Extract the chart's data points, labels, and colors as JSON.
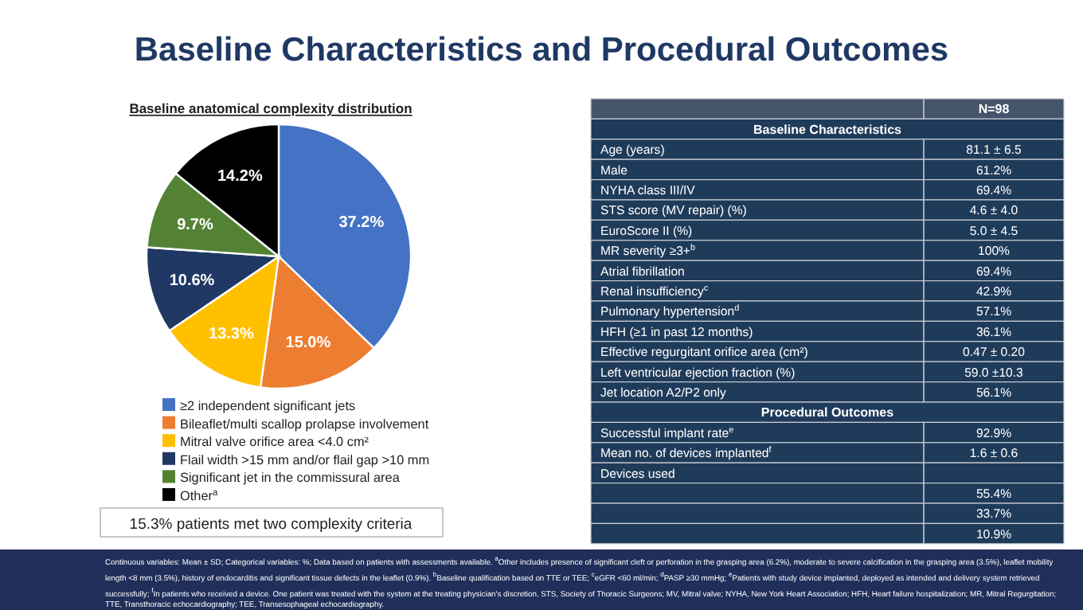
{
  "chart_data": [
    {
      "type": "pie",
      "title": "Baseline Characteristics and Procedural Outcomes",
      "subtitle": "Baseline anatomical complexity distribution",
      "categories": [
        "≥2 independent significant jets",
        "Bileaflet/multi scallop prolapse involvement",
        "Mitral valve orifice area <4.0 cm²",
        "Flail width >15 mm and/or flail gap >10 mm",
        "Significant jet in the commissural area",
        "Other$^{a}$"
      ],
      "values": [
        37.2,
        15.0,
        13.3,
        10.6,
        9.7,
        14.2
      ],
      "colors": [
        "#4472c4",
        "#ed7d31",
        "#ffc000",
        "#1f3864",
        "#548235",
        "#000000"
      ],
      "value_labels": [
        "37.2%",
        "15.0%",
        "13.3%",
        "10.6%",
        "9.7%",
        "14.2%"
      ],
      "legend": "bottom",
      "annotations": [
        "15.3% patients met two complexity criteria",
        "Continuous variables: Mean ± SD; Categorical variables: %; Data based on patients with assessments available. $^{a}$Other includes presence of significant cleft or perforation in the grasping area (6.2%), moderate to severe calcification in the grasping area (3.5%), leaflet mobility length <8 mm (3.5%), history of endocarditis and significant tissue defects in the leaflet (0.9%). $^{b}$Baseline qualification based on TTE or TEE; $^{c}$eGFR <60 ml/min; $^{d}$PASP ≥30 mmHg; $^{e}$Patients with study device implanted, deployed as intended and delivery system retrieved successfully; $^{f}$In patients who received a device. One patient was treated with the system at the treating physician's discretion. STS, Society of Thoracic Surgeons; MV, Mitral valve; NYHA, New York Heart Association; HFH, Heart failure hospitalization; MR, Mitral Regurgitation; TTE, Transthoracic echocardiography; TEE, Transesophageal echocardiography."
      ]
    },
    {
      "type": "other",
      "subtitle": "N=98",
      "title": "Baseline Characteristics",
      "categories": [
        "Age (years)",
        "Male",
        "NYHA class III/IV",
        "STS score (MV repair) (%)",
        "EuroScore II (%)",
        "MR severity ≥3+$^{b}$",
        "Atrial fibrillation",
        "Renal insufficiency$^{c}$",
        "Pulmonary hypertension$^{d}$",
        "HFH (≥1 in past 12 months)",
        "Effective regurgitant orifice area (cm²)",
        "Left ventricular ejection fraction (%)",
        "Jet location A2/P2 only"
      ],
      "value_labels": [
        "81.1 ± 6.5",
        "61.2%",
        "69.4%",
        "4.6 ± 4.0",
        "5.0 ± 4.5",
        "100%",
        "69.4%",
        "42.9%",
        "57.1%",
        "36.1%",
        "0.47 ± 0.20",
        "59.0 ±10.3",
        "56.1%"
      ]
    },
    {
      "type": "other",
      "title": "Procedural Outcomes",
      "categories": [
        "Successful implant rate$^{e}$",
        "Mean no. of devices implanted$^{f}$",
        "Devices used",
        null,
        null,
        null
      ],
      "value_labels": [
        "92.9%",
        "1.6 ± 0.6",
        null,
        "55.4%",
        "33.7%",
        "10.9%"
      ]
    }
  ]
}
